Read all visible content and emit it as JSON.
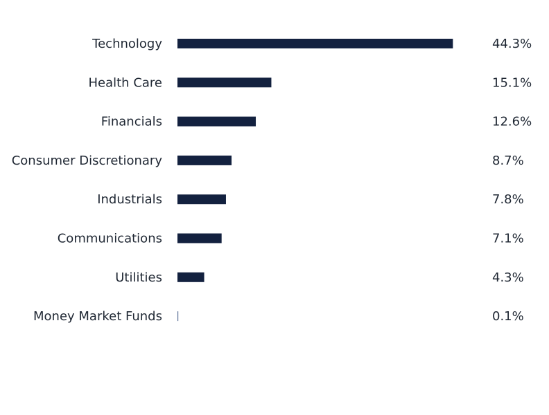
{
  "chart_data": {
    "type": "bar",
    "orientation": "horizontal",
    "categories": [
      "Technology",
      "Health Care",
      "Financials",
      "Consumer Discretionary",
      "Industrials",
      "Communications",
      "Utilities",
      "Money Market Funds"
    ],
    "values": [
      44.3,
      15.1,
      12.6,
      8.7,
      7.8,
      7.1,
      4.3,
      0.1
    ],
    "value_labels": [
      "44.3%",
      "15.1%",
      "12.6%",
      "8.7%",
      "7.8%",
      "7.1%",
      "4.3%",
      "0.1%"
    ],
    "unit": "%",
    "title": "",
    "xlabel": "",
    "ylabel": "",
    "grid": false,
    "legend": "none",
    "bar_color": "#13213f"
  }
}
